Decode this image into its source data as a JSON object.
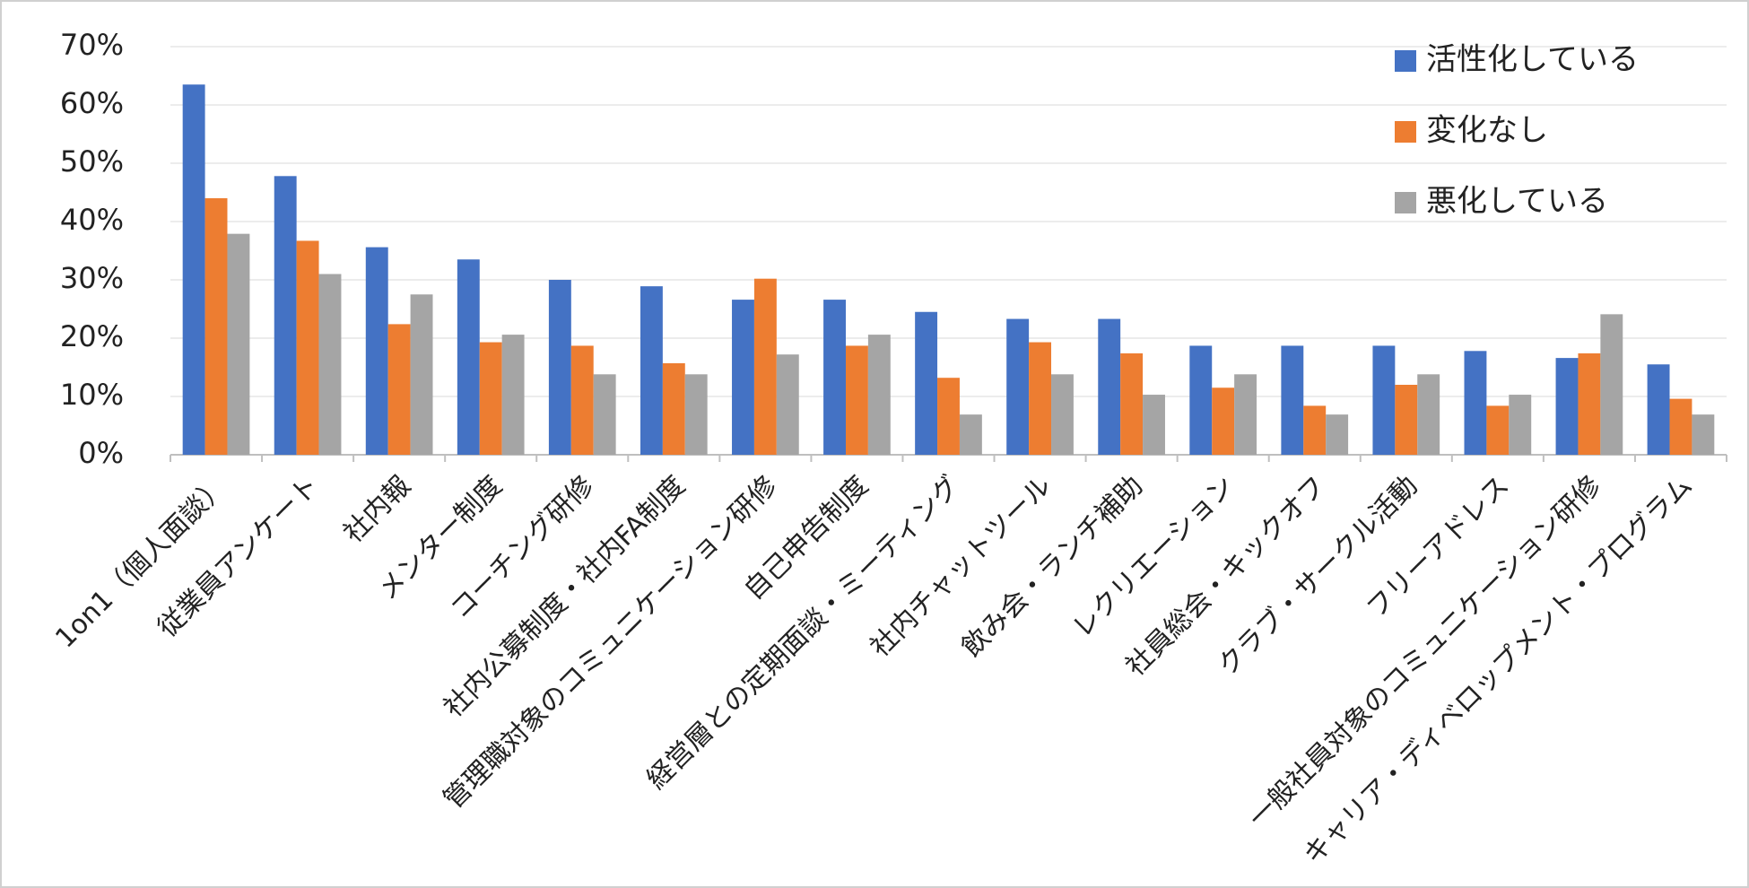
{
  "chart_data": {
    "type": "bar",
    "categories": [
      "1on1（個人面談）",
      "従業員アンケート",
      "社内報",
      "メンター制度",
      "コーチング研修",
      "社内公募制度・社内FA制度",
      "管理職対象のコミュニケーション研修",
      "自己申告制度",
      "経営層との定期面談・ミーティング",
      "社内チャットツール",
      "飲み会・ランチ補助",
      "レクリエーション",
      "社員総会・キックオフ",
      "クラブ・サークル活動",
      "フリーアドレス",
      "一般社員対象のコミュニケーション研修",
      "キャリア・ディベロップメント・プログラム"
    ],
    "series": [
      {
        "name": "活性化している",
        "color": "#4472c4",
        "values": [
          63.5,
          47.8,
          35.6,
          33.5,
          30,
          28.9,
          26.6,
          26.6,
          24.5,
          23.3,
          23.3,
          18.7,
          18.7,
          18.7,
          17.8,
          16.6,
          15.5
        ]
      },
      {
        "name": "変化なし",
        "color": "#ed7d31",
        "values": [
          44,
          36.7,
          22.4,
          19.3,
          18.7,
          15.7,
          30.2,
          18.7,
          13.2,
          19.3,
          17.4,
          11.5,
          8.4,
          12,
          8.4,
          17.4,
          9.6
        ]
      },
      {
        "name": "悪化している",
        "color": "#a5a5a5",
        "values": [
          37.9,
          31,
          27.5,
          20.6,
          13.8,
          13.8,
          17.2,
          20.6,
          6.9,
          13.8,
          10.3,
          13.8,
          6.9,
          13.8,
          10.3,
          24.1,
          6.9
        ]
      }
    ],
    "ylim": [
      0,
      70
    ],
    "yticks": [
      {
        "value": 0,
        "label": "0%"
      },
      {
        "value": 10,
        "label": "10%"
      },
      {
        "value": 20,
        "label": "20%"
      },
      {
        "value": 30,
        "label": "30%"
      },
      {
        "value": 40,
        "label": "40%"
      },
      {
        "value": 50,
        "label": "50%"
      },
      {
        "value": 60,
        "label": "60%"
      },
      {
        "value": 70,
        "label": "70%"
      }
    ],
    "grid": true,
    "legend": "top-right"
  }
}
